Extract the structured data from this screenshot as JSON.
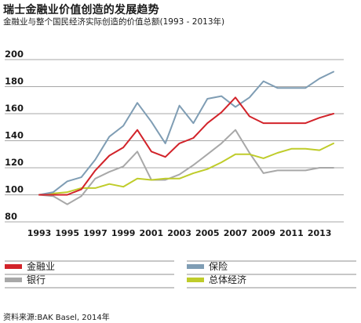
{
  "title": "瑞士金融业价值创造的发展趋势",
  "subtitle": "金融业与整个国民经济实际创造的价值总额(1993 - 2013年)",
  "source": "资料来源:BAK Basel, 2014年",
  "chart_data": {
    "type": "line",
    "title": "瑞士金融业价值创造的发展趋势",
    "subtitle": "金融业与整个国民经济实际创造的价值总额(1993 - 2013年)",
    "x": [
      1993,
      1994,
      1995,
      1996,
      1997,
      1998,
      1999,
      2000,
      2001,
      2002,
      2003,
      2004,
      2005,
      2006,
      2007,
      2008,
      2009,
      2010,
      2011,
      2012,
      2013,
      2014
    ],
    "x_tick_labels": [
      "1993",
      "1995",
      "1997",
      "1999",
      "2001",
      "2003",
      "2005",
      "2007",
      "2009",
      "2011",
      "2013"
    ],
    "y_tick_labels": [
      "80",
      "100",
      "120",
      "140",
      "160",
      "180",
      "200"
    ],
    "xlim": [
      1992,
      2015
    ],
    "ylim": [
      80,
      200
    ],
    "grid": "horizontal",
    "legend_position": "bottom",
    "series": [
      {
        "name": "金融业",
        "color": "#d2232a",
        "values": [
          100,
          100,
          100,
          104,
          118,
          129,
          135,
          148,
          132,
          128,
          138,
          142,
          153,
          161,
          172,
          158,
          153,
          153,
          153,
          153,
          157,
          160
        ]
      },
      {
        "name": "保险",
        "color": "#7f9db4",
        "values": [
          100,
          102,
          110,
          113,
          126,
          143,
          151,
          168,
          154,
          138,
          166,
          153,
          171,
          173,
          165,
          172,
          184,
          179,
          179,
          179,
          186,
          191
        ]
      },
      {
        "name": "银行",
        "color": "#a8a8a8",
        "values": [
          100,
          99,
          93,
          99,
          112,
          117,
          121,
          132,
          111,
          111,
          115,
          122,
          130,
          138,
          148,
          131,
          116,
          118,
          118,
          118,
          120,
          120
        ]
      },
      {
        "name": "总体经济",
        "color": "#bfcc2a",
        "values": [
          100,
          101,
          102,
          105,
          105,
          108,
          106,
          112,
          111,
          112,
          112,
          116,
          119,
          124,
          130,
          130,
          127,
          131,
          134,
          134,
          133,
          138
        ]
      }
    ]
  }
}
